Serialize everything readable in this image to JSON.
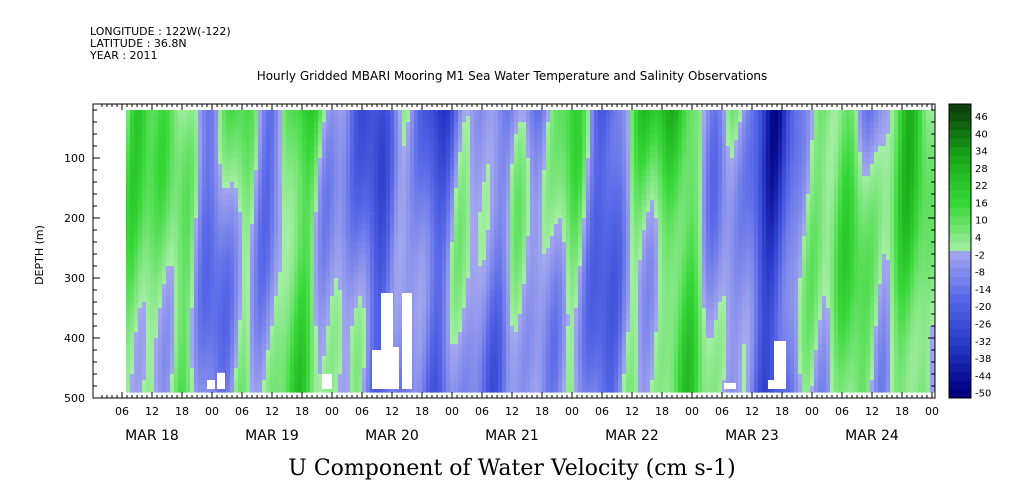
{
  "chart_data": {
    "type": "heatmap",
    "header": {
      "longitude": "LONGITUDE : 122W(-122)",
      "latitude": "LATITUDE : 36.8N",
      "year": "YEAR : 2011"
    },
    "title": "Hourly Gridded MBARI Mooring M1 Sea Water Temperature and Salinity Observations",
    "xlabel": "",
    "ylabel": "DEPTH (m)",
    "variable_label": "U Component of Water Velocity (cm s-1)",
    "x_hour_ticks": [
      "06",
      "12",
      "18",
      "00",
      "06",
      "12",
      "18",
      "00",
      "06",
      "12",
      "18",
      "00",
      "06",
      "12",
      "18",
      "00",
      "06",
      "12",
      "18",
      "00",
      "06",
      "12",
      "18",
      "00",
      "06",
      "12",
      "18",
      "00"
    ],
    "x_date_labels": [
      "MAR 18",
      "MAR 19",
      "MAR 20",
      "MAR 21",
      "MAR 22",
      "MAR 23",
      "MAR 24"
    ],
    "y_ticks": [
      "100",
      "200",
      "300",
      "400",
      "500"
    ],
    "y_tick_values": [
      100,
      200,
      300,
      400,
      500
    ],
    "ylim": [
      500,
      10
    ],
    "data_depth_range": [
      20,
      485
    ],
    "colorbar_labels": [
      "46",
      "40",
      "34",
      "28",
      "22",
      "16",
      "10",
      "4",
      "-2",
      "-8",
      "-14",
      "-20",
      "-26",
      "-32",
      "-38",
      "-44",
      "-50"
    ],
    "colorbar_range": [
      -50,
      50
    ],
    "colorbar_levels": 34,
    "colors": {
      "negative_extreme": "#000080",
      "negative_strong": "#2838c8",
      "negative_mid": "#5868e8",
      "negative_weak": "#a4a8ee",
      "positive_weak": "#a4eea4",
      "positive_mid": "#38d838",
      "positive_strong": "#18a818",
      "positive_extreme": "#0c420c"
    },
    "u_velocity_summary": [
      {
        "period": "MAR 18 06-12",
        "dominant_sign": "positive",
        "typical_cm_s": 10
      },
      {
        "period": "MAR 19 00-06",
        "dominant_sign": "mixed",
        "typical_cm_s": 4
      },
      {
        "period": "MAR 20 06-18",
        "dominant_sign": "negative",
        "typical_cm_s": -20
      },
      {
        "period": "MAR 21 00-12",
        "dominant_sign": "positive",
        "typical_cm_s": 12
      },
      {
        "period": "MAR 21 18-00",
        "dominant_sign": "negative",
        "typical_cm_s": -10
      },
      {
        "period": "MAR 22 12-18",
        "dominant_sign": "positive",
        "typical_cm_s": 18
      },
      {
        "period": "MAR 23 00-12",
        "dominant_sign": "negative",
        "typical_cm_s": -14
      },
      {
        "period": "MAR 24 06-00",
        "dominant_sign": "positive",
        "typical_cm_s": 14
      }
    ]
  }
}
